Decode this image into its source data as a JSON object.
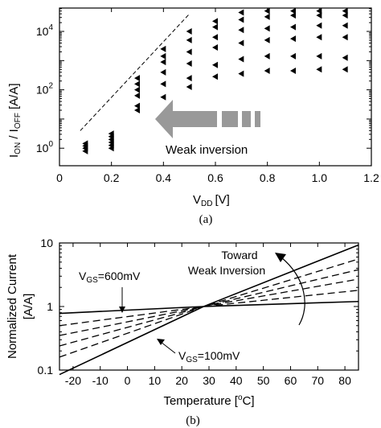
{
  "chart_data": [
    {
      "panel": "(a)",
      "type": "scatter",
      "xlabel_main": "V",
      "xlabel_sub": "DD",
      "xlabel_unit": "[V]",
      "ylabel_parts": [
        "I",
        "ON",
        " / I",
        "OFF",
        " [A/A]"
      ],
      "xlim": [
        0,
        1.2
      ],
      "ylim_log10": [
        -0.6,
        4.8
      ],
      "yscale": "log",
      "xticks": [
        "0",
        "0.2",
        "0.4",
        "0.6",
        "0.8",
        "1.0",
        "1.2"
      ],
      "yticks": [
        {
          "base": "10",
          "exp": "0",
          "v": 0
        },
        {
          "base": "10",
          "exp": "2",
          "v": 2
        },
        {
          "base": "10",
          "exp": "4",
          "v": 4
        }
      ],
      "columns": [
        {
          "x": 0.1,
          "log_y": [
            -0.1,
            0.0,
            0.08,
            0.16
          ]
        },
        {
          "x": 0.2,
          "log_y": [
            0.0,
            0.1,
            0.2,
            0.3,
            0.4,
            0.5
          ]
        },
        {
          "x": 0.3,
          "log_y": [
            1.3,
            1.45,
            1.8,
            2.0,
            2.2,
            2.4
          ]
        },
        {
          "x": 0.4,
          "log_y": [
            1.75,
            2.2,
            2.6,
            2.95,
            3.15,
            3.4
          ]
        },
        {
          "x": 0.5,
          "log_y": [
            2.1,
            2.4,
            2.9,
            3.3,
            3.7,
            4.0
          ]
        },
        {
          "x": 0.6,
          "log_y": [
            2.45,
            2.85,
            3.45,
            3.8,
            4.15,
            4.35
          ]
        },
        {
          "x": 0.7,
          "log_y": [
            2.55,
            3.05,
            3.6,
            4.05,
            4.4,
            4.65
          ]
        },
        {
          "x": 0.8,
          "log_y": [
            2.65,
            3.15,
            3.7,
            4.1,
            4.5,
            4.7
          ]
        },
        {
          "x": 0.9,
          "log_y": [
            2.65,
            3.15,
            3.75,
            4.15,
            4.55,
            4.7
          ]
        },
        {
          "x": 1.0,
          "log_y": [
            2.7,
            3.15,
            3.8,
            4.2,
            4.55,
            4.7
          ]
        },
        {
          "x": 1.1,
          "log_y": [
            2.7,
            3.1,
            3.8,
            4.2,
            4.55,
            4.7
          ]
        }
      ],
      "trend_line": {
        "x": [
          0.08,
          0.5
        ],
        "log_y": [
          0.6,
          4.6
        ]
      },
      "annotation": "Weak inversion"
    },
    {
      "panel": "(b)",
      "type": "line",
      "xlabel": "Temperature [",
      "xlabel_sup": "o",
      "xlabel_end": "C]",
      "ylabel": "Normalized Current",
      "ylabel2": "[A/A]",
      "xlim": [
        -25,
        85
      ],
      "ylim": [
        0.1,
        10
      ],
      "yscale": "log",
      "xticks": [
        "-20",
        "-10",
        "0",
        "10",
        "20",
        "30",
        "40",
        "50",
        "60",
        "70",
        "80"
      ],
      "yticks": [
        "0.1",
        "1",
        "10"
      ],
      "series": [
        {
          "label": "V_GS=600mV",
          "style": "solid",
          "x": [
            -25,
            28,
            85
          ],
          "y": [
            0.78,
            1.0,
            1.2
          ]
        },
        {
          "style": "dashed",
          "x": [
            -25,
            28,
            85
          ],
          "y": [
            0.5,
            1.0,
            1.8
          ]
        },
        {
          "style": "dashed",
          "x": [
            -25,
            28,
            85
          ],
          "y": [
            0.35,
            1.0,
            2.7
          ]
        },
        {
          "style": "dashed",
          "x": [
            -25,
            28,
            85
          ],
          "y": [
            0.24,
            1.0,
            3.8
          ]
        },
        {
          "style": "dashed",
          "x": [
            -25,
            28,
            85
          ],
          "y": [
            0.16,
            1.0,
            5.6
          ]
        },
        {
          "label": "V_GS=100mV",
          "style": "solid",
          "x": [
            -25,
            28,
            85
          ],
          "y": [
            0.085,
            1.0,
            9.3
          ]
        }
      ],
      "annotation_top_1": "Toward",
      "annotation_top_2": "Weak Inversion",
      "label_600": {
        "pre": "V",
        "sub": "GS",
        "post": "=600mV"
      },
      "label_100": {
        "pre": "V",
        "sub": "GS",
        "post": "=100mV"
      }
    }
  ],
  "caption_a": "(a)",
  "caption_b": "(b)"
}
